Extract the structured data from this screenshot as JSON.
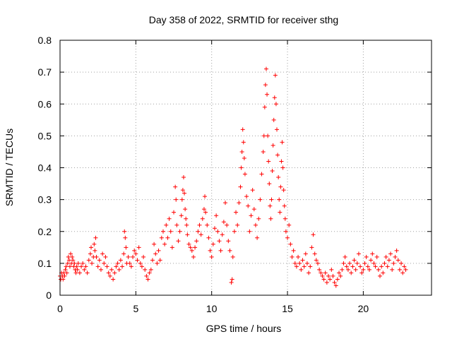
{
  "chart_data": {
    "type": "scatter",
    "title": "Day 358 of 2022, SRMTID for receiver sthg",
    "xlabel": "GPS time / hours",
    "ylabel": "SRMTID / TECUs",
    "xlim": [
      0,
      24.5
    ],
    "ylim": [
      0,
      0.8
    ],
    "xticks": [
      0,
      5,
      10,
      15,
      20
    ],
    "xtick_labels": [
      "0",
      "5",
      "10",
      "15",
      "20"
    ],
    "yticks": [
      0,
      0.1,
      0.2,
      0.3,
      0.4,
      0.5,
      0.6,
      0.7,
      0.8
    ],
    "ytick_labels": [
      "0",
      "0.1",
      "0.2",
      "0.3",
      "0.4",
      "0.5",
      "0.6",
      "0.7",
      "0.8"
    ],
    "grid": true,
    "marker": "+",
    "color": "#ff0000",
    "series": [
      {
        "name": "SRMTID",
        "points": [
          [
            0.0,
            0.06
          ],
          [
            0.05,
            0.05
          ],
          [
            0.1,
            0.07
          ],
          [
            0.15,
            0.06
          ],
          [
            0.2,
            0.05
          ],
          [
            0.25,
            0.07
          ],
          [
            0.3,
            0.06
          ],
          [
            0.35,
            0.08
          ],
          [
            0.4,
            0.09
          ],
          [
            0.45,
            0.07
          ],
          [
            0.5,
            0.1
          ],
          [
            0.55,
            0.12
          ],
          [
            0.6,
            0.11
          ],
          [
            0.65,
            0.09
          ],
          [
            0.7,
            0.13
          ],
          [
            0.75,
            0.1
          ],
          [
            0.8,
            0.12
          ],
          [
            0.85,
            0.11
          ],
          [
            0.9,
            0.09
          ],
          [
            0.95,
            0.1
          ],
          [
            1.0,
            0.08
          ],
          [
            1.05,
            0.07
          ],
          [
            1.1,
            0.09
          ],
          [
            1.15,
            0.08
          ],
          [
            1.2,
            0.1
          ],
          [
            1.3,
            0.07
          ],
          [
            1.4,
            0.09
          ],
          [
            1.5,
            0.1
          ],
          [
            1.6,
            0.08
          ],
          [
            1.7,
            0.09
          ],
          [
            1.8,
            0.07
          ],
          [
            1.9,
            0.11
          ],
          [
            2.0,
            0.13
          ],
          [
            2.05,
            0.15
          ],
          [
            2.1,
            0.1
          ],
          [
            2.2,
            0.12
          ],
          [
            2.25,
            0.16
          ],
          [
            2.3,
            0.14
          ],
          [
            2.35,
            0.18
          ],
          [
            2.4,
            0.12
          ],
          [
            2.5,
            0.09
          ],
          [
            2.6,
            0.11
          ],
          [
            2.7,
            0.08
          ],
          [
            2.8,
            0.13
          ],
          [
            2.9,
            0.1
          ],
          [
            3.0,
            0.12
          ],
          [
            3.1,
            0.09
          ],
          [
            3.2,
            0.07
          ],
          [
            3.3,
            0.06
          ],
          [
            3.4,
            0.08
          ],
          [
            3.5,
            0.05
          ],
          [
            3.6,
            0.07
          ],
          [
            3.7,
            0.09
          ],
          [
            3.8,
            0.1
          ],
          [
            3.9,
            0.08
          ],
          [
            4.0,
            0.11
          ],
          [
            4.1,
            0.09
          ],
          [
            4.2,
            0.13
          ],
          [
            4.25,
            0.2
          ],
          [
            4.3,
            0.18
          ],
          [
            4.35,
            0.15
          ],
          [
            4.4,
            0.1
          ],
          [
            4.5,
            0.12
          ],
          [
            4.6,
            0.1
          ],
          [
            4.7,
            0.09
          ],
          [
            4.8,
            0.12
          ],
          [
            4.9,
            0.14
          ],
          [
            5.0,
            0.13
          ],
          [
            5.1,
            0.11
          ],
          [
            5.2,
            0.15
          ],
          [
            5.3,
            0.1
          ],
          [
            5.4,
            0.09
          ],
          [
            5.5,
            0.12
          ],
          [
            5.6,
            0.08
          ],
          [
            5.7,
            0.06
          ],
          [
            5.8,
            0.05
          ],
          [
            5.9,
            0.07
          ],
          [
            6.0,
            0.08
          ],
          [
            6.1,
            0.11
          ],
          [
            6.2,
            0.16
          ],
          [
            6.3,
            0.13
          ],
          [
            6.4,
            0.1
          ],
          [
            6.5,
            0.14
          ],
          [
            6.6,
            0.11
          ],
          [
            6.7,
            0.18
          ],
          [
            6.8,
            0.2
          ],
          [
            6.9,
            0.16
          ],
          [
            7.0,
            0.22
          ],
          [
            7.1,
            0.18
          ],
          [
            7.2,
            0.24
          ],
          [
            7.3,
            0.2
          ],
          [
            7.4,
            0.15
          ],
          [
            7.5,
            0.26
          ],
          [
            7.6,
            0.34
          ],
          [
            7.65,
            0.3
          ],
          [
            7.7,
            0.22
          ],
          [
            7.8,
            0.17
          ],
          [
            7.9,
            0.2
          ],
          [
            8.0,
            0.25
          ],
          [
            8.05,
            0.3
          ],
          [
            8.1,
            0.33
          ],
          [
            8.15,
            0.37
          ],
          [
            8.2,
            0.32
          ],
          [
            8.25,
            0.27
          ],
          [
            8.3,
            0.24
          ],
          [
            8.35,
            0.22
          ],
          [
            8.4,
            0.19
          ],
          [
            8.5,
            0.16
          ],
          [
            8.6,
            0.15
          ],
          [
            8.7,
            0.14
          ],
          [
            8.8,
            0.12
          ],
          [
            8.9,
            0.15
          ],
          [
            9.0,
            0.17
          ],
          [
            9.1,
            0.2
          ],
          [
            9.2,
            0.22
          ],
          [
            9.3,
            0.19
          ],
          [
            9.4,
            0.24
          ],
          [
            9.5,
            0.27
          ],
          [
            9.55,
            0.31
          ],
          [
            9.6,
            0.26
          ],
          [
            9.7,
            0.22
          ],
          [
            9.8,
            0.18
          ],
          [
            9.9,
            0.14
          ],
          [
            10.0,
            0.12
          ],
          [
            10.1,
            0.16
          ],
          [
            10.2,
            0.21
          ],
          [
            10.3,
            0.25
          ],
          [
            10.4,
            0.2
          ],
          [
            10.5,
            0.17
          ],
          [
            10.6,
            0.14
          ],
          [
            10.7,
            0.19
          ],
          [
            10.8,
            0.23
          ],
          [
            10.9,
            0.29
          ],
          [
            11.0,
            0.22
          ],
          [
            11.1,
            0.17
          ],
          [
            11.2,
            0.14
          ],
          [
            11.3,
            0.04
          ],
          [
            11.35,
            0.05
          ],
          [
            11.4,
            0.12
          ],
          [
            11.5,
            0.2
          ],
          [
            11.6,
            0.26
          ],
          [
            11.7,
            0.22
          ],
          [
            11.8,
            0.29
          ],
          [
            11.9,
            0.34
          ],
          [
            11.95,
            0.4
          ],
          [
            12.0,
            0.45
          ],
          [
            12.05,
            0.52
          ],
          [
            12.1,
            0.48
          ],
          [
            12.15,
            0.43
          ],
          [
            12.2,
            0.38
          ],
          [
            12.3,
            0.31
          ],
          [
            12.4,
            0.28
          ],
          [
            12.5,
            0.2
          ],
          [
            12.6,
            0.25
          ],
          [
            12.7,
            0.33
          ],
          [
            12.8,
            0.27
          ],
          [
            12.9,
            0.22
          ],
          [
            13.0,
            0.18
          ],
          [
            13.1,
            0.24
          ],
          [
            13.2,
            0.3
          ],
          [
            13.3,
            0.38
          ],
          [
            13.4,
            0.45
          ],
          [
            13.45,
            0.5
          ],
          [
            13.5,
            0.59
          ],
          [
            13.55,
            0.66
          ],
          [
            13.6,
            0.71
          ],
          [
            13.65,
            0.63
          ],
          [
            13.7,
            0.5
          ],
          [
            13.75,
            0.42
          ],
          [
            13.8,
            0.35
          ],
          [
            13.85,
            0.28
          ],
          [
            13.9,
            0.24
          ],
          [
            13.95,
            0.3
          ],
          [
            14.0,
            0.39
          ],
          [
            14.05,
            0.47
          ],
          [
            14.1,
            0.55
          ],
          [
            14.15,
            0.62
          ],
          [
            14.2,
            0.69
          ],
          [
            14.25,
            0.6
          ],
          [
            14.3,
            0.52
          ],
          [
            14.35,
            0.44
          ],
          [
            14.4,
            0.37
          ],
          [
            14.45,
            0.3
          ],
          [
            14.5,
            0.26
          ],
          [
            14.55,
            0.34
          ],
          [
            14.6,
            0.42
          ],
          [
            14.65,
            0.48
          ],
          [
            14.7,
            0.4
          ],
          [
            14.75,
            0.33
          ],
          [
            14.8,
            0.28
          ],
          [
            14.85,
            0.24
          ],
          [
            14.9,
            0.2
          ],
          [
            15.0,
            0.18
          ],
          [
            15.1,
            0.22
          ],
          [
            15.2,
            0.16
          ],
          [
            15.3,
            0.12
          ],
          [
            15.4,
            0.14
          ],
          [
            15.5,
            0.1
          ],
          [
            15.6,
            0.09
          ],
          [
            15.7,
            0.12
          ],
          [
            15.8,
            0.1
          ],
          [
            15.9,
            0.08
          ],
          [
            16.0,
            0.11
          ],
          [
            16.1,
            0.09
          ],
          [
            16.2,
            0.13
          ],
          [
            16.3,
            0.1
          ],
          [
            16.4,
            0.07
          ],
          [
            16.5,
            0.09
          ],
          [
            16.6,
            0.15
          ],
          [
            16.7,
            0.19
          ],
          [
            16.8,
            0.13
          ],
          [
            16.9,
            0.11
          ],
          [
            17.0,
            0.1
          ],
          [
            17.1,
            0.08
          ],
          [
            17.2,
            0.07
          ],
          [
            17.3,
            0.06
          ],
          [
            17.4,
            0.05
          ],
          [
            17.5,
            0.07
          ],
          [
            17.6,
            0.04
          ],
          [
            17.7,
            0.06
          ],
          [
            17.8,
            0.05
          ],
          [
            17.9,
            0.08
          ],
          [
            18.0,
            0.06
          ],
          [
            18.1,
            0.04
          ],
          [
            18.2,
            0.03
          ],
          [
            18.3,
            0.05
          ],
          [
            18.4,
            0.07
          ],
          [
            18.5,
            0.06
          ],
          [
            18.6,
            0.08
          ],
          [
            18.7,
            0.1
          ],
          [
            18.8,
            0.12
          ],
          [
            18.9,
            0.09
          ],
          [
            19.0,
            0.08
          ],
          [
            19.1,
            0.1
          ],
          [
            19.2,
            0.07
          ],
          [
            19.3,
            0.09
          ],
          [
            19.4,
            0.11
          ],
          [
            19.5,
            0.08
          ],
          [
            19.6,
            0.1
          ],
          [
            19.7,
            0.13
          ],
          [
            19.8,
            0.09
          ],
          [
            19.9,
            0.07
          ],
          [
            20.0,
            0.08
          ],
          [
            20.1,
            0.1
          ],
          [
            20.2,
            0.12
          ],
          [
            20.3,
            0.09
          ],
          [
            20.4,
            0.08
          ],
          [
            20.5,
            0.11
          ],
          [
            20.6,
            0.13
          ],
          [
            20.7,
            0.1
          ],
          [
            20.8,
            0.09
          ],
          [
            20.9,
            0.12
          ],
          [
            21.0,
            0.08
          ],
          [
            21.1,
            0.06
          ],
          [
            21.2,
            0.09
          ],
          [
            21.3,
            0.07
          ],
          [
            21.4,
            0.1
          ],
          [
            21.5,
            0.12
          ],
          [
            21.6,
            0.09
          ],
          [
            21.7,
            0.11
          ],
          [
            21.8,
            0.13
          ],
          [
            21.9,
            0.08
          ],
          [
            22.0,
            0.1
          ],
          [
            22.1,
            0.12
          ],
          [
            22.2,
            0.14
          ],
          [
            22.3,
            0.11
          ],
          [
            22.4,
            0.08
          ],
          [
            22.5,
            0.1
          ],
          [
            22.6,
            0.07
          ],
          [
            22.7,
            0.09
          ],
          [
            22.8,
            0.08
          ]
        ]
      }
    ]
  }
}
